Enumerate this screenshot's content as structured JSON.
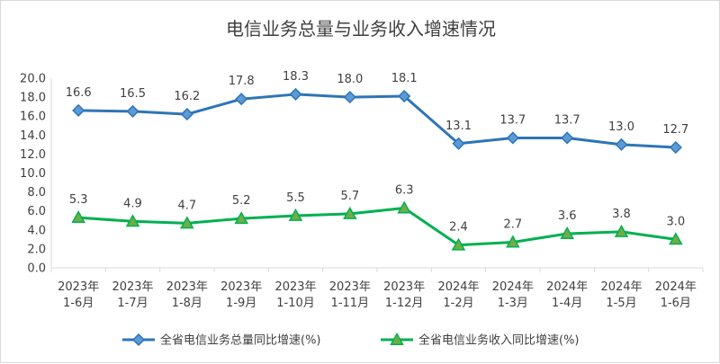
{
  "chart_data": {
    "type": "line",
    "title": "电信业务总量与业务收入增速情况",
    "categories": [
      [
        "2023年",
        "1-6月"
      ],
      [
        "2023年",
        "1-7月"
      ],
      [
        "2023年",
        "1-8月"
      ],
      [
        "2023年",
        "1-9月"
      ],
      [
        "2023年",
        "1-10月"
      ],
      [
        "2023年",
        "1-11月"
      ],
      [
        "2023年",
        "1-12月"
      ],
      [
        "2024年",
        "1-2月"
      ],
      [
        "2024年",
        "1-3月"
      ],
      [
        "2024年",
        "1-4月"
      ],
      [
        "2024年",
        "1-5月"
      ],
      [
        "2024年",
        "1-6月"
      ]
    ],
    "series": [
      {
        "name": "全省电信业务总量同比增速(%)",
        "color": "#2e75b6",
        "marker": "diamond",
        "values": [
          16.6,
          16.5,
          16.2,
          17.8,
          18.3,
          18.0,
          18.1,
          13.1,
          13.7,
          13.7,
          13.0,
          12.7
        ],
        "labels": [
          "16.6",
          "16.5",
          "16.2",
          "17.8",
          "18.3",
          "18.0",
          "18.1",
          "13.1",
          "13.7",
          "13.7",
          "13.0",
          "12.7"
        ]
      },
      {
        "name": "全省电信业务收入同比增速(%)",
        "color": "#00b050",
        "marker": "triangle",
        "values": [
          5.3,
          4.9,
          4.7,
          5.2,
          5.5,
          5.7,
          6.3,
          2.4,
          2.7,
          3.6,
          3.8,
          3.0
        ],
        "labels": [
          "5.3",
          "4.9",
          "4.7",
          "5.2",
          "5.5",
          "5.7",
          "6.3",
          "2.4",
          "2.7",
          "3.6",
          "3.8",
          "3.0"
        ]
      }
    ],
    "ylim": [
      0,
      20
    ],
    "yticks": [
      "0.0",
      "2.0",
      "4.0",
      "6.0",
      "8.0",
      "10.0",
      "12.0",
      "14.0",
      "16.0",
      "18.0",
      "20.0"
    ],
    "grid": false,
    "legend_position": "bottom"
  }
}
